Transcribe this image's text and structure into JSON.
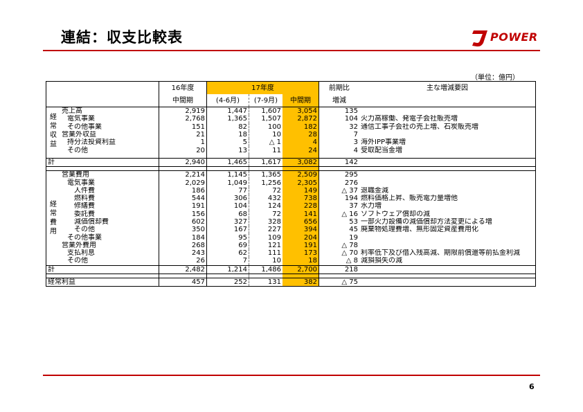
{
  "title": "連結：収支比較表",
  "logo": {
    "text": "POWER"
  },
  "unit": "（単位：億円）",
  "page_number": "6",
  "header": {
    "fy16": "16年度",
    "fy16_sub": "中間期",
    "fy17": "17年度",
    "q1": "(4-6月)",
    "q2": "(7-9月)",
    "fy17_sub": "中間期",
    "yoy": "前期比",
    "yoy_sub": "増減",
    "reasons": "主な増減要因"
  },
  "group_revenue": "経常収益",
  "group_expense": "経常費用",
  "revenue_rows": [
    {
      "label": "売上高",
      "indent": 0,
      "v16": "2,919",
      "q1": "1,447",
      "q2": "1,607",
      "h17": "3,054",
      "diff": "135",
      "reason": ""
    },
    {
      "label": "電気事業",
      "indent": 1,
      "v16": "2,768",
      "q1": "1,365",
      "q2": "1,507",
      "h17": "2,872",
      "diff": "104",
      "reason": "火力高稼働、発電子会社販売増"
    },
    {
      "label": "その他事業",
      "indent": 1,
      "v16": "151",
      "q1": "82",
      "q2": "100",
      "h17": "182",
      "diff": "32",
      "reason": "通信工事子会社の売上増、石炭販売増"
    },
    {
      "label": "営業外収益",
      "indent": 0,
      "v16": "21",
      "q1": "18",
      "q2": "10",
      "h17": "28",
      "diff": "7",
      "reason": ""
    },
    {
      "label": "持分法投資利益",
      "indent": 1,
      "v16": "1",
      "q1": "5",
      "q2": "△ 1",
      "h17": "4",
      "diff": "3",
      "reason": "海外IPP事業増"
    },
    {
      "label": "その他",
      "indent": 1,
      "v16": "20",
      "q1": "13",
      "q2": "11",
      "h17": "24",
      "diff": "4",
      "reason": "受取配当金増"
    }
  ],
  "revenue_total": {
    "label": "計",
    "v16": "2,940",
    "q1": "1,465",
    "q2": "1,617",
    "h17": "3,082",
    "diff": "142",
    "reason": ""
  },
  "expense_rows": [
    {
      "label": "営業費用",
      "indent": 0,
      "v16": "2,214",
      "q1": "1,145",
      "q2": "1,365",
      "h17": "2,509",
      "diff": "295",
      "reason": ""
    },
    {
      "label": "電気事業",
      "indent": 1,
      "v16": "2,029",
      "q1": "1,049",
      "q2": "1,256",
      "h17": "2,305",
      "diff": "276",
      "reason": ""
    },
    {
      "label": "人件費",
      "indent": 2,
      "v16": "186",
      "q1": "77",
      "q2": "72",
      "h17": "149",
      "diff": "△ 37",
      "reason": "退職金減"
    },
    {
      "label": "燃料費",
      "indent": 2,
      "v16": "544",
      "q1": "306",
      "q2": "432",
      "h17": "738",
      "diff": "194",
      "reason": "燃料価格上昇、販売電力量増他"
    },
    {
      "label": "修繕費",
      "indent": 2,
      "v16": "191",
      "q1": "104",
      "q2": "124",
      "h17": "228",
      "diff": "37",
      "reason": "水力増"
    },
    {
      "label": "委託費",
      "indent": 2,
      "v16": "156",
      "q1": "68",
      "q2": "72",
      "h17": "141",
      "diff": "△ 16",
      "reason": "ソフトウェア償却の減"
    },
    {
      "label": "減価償却費",
      "indent": 2,
      "v16": "602",
      "q1": "327",
      "q2": "328",
      "h17": "656",
      "diff": "53",
      "reason": "一部火力設備の減価償却方法変更による増"
    },
    {
      "label": "その他",
      "indent": 2,
      "v16": "350",
      "q1": "167",
      "q2": "227",
      "h17": "394",
      "diff": "45",
      "reason": "廃棄物処理費増、無形固定資産費用化"
    },
    {
      "label": "その他事業",
      "indent": 1,
      "v16": "184",
      "q1": "95",
      "q2": "109",
      "h17": "204",
      "diff": "19",
      "reason": ""
    },
    {
      "label": "営業外費用",
      "indent": 0,
      "v16": "268",
      "q1": "69",
      "q2": "121",
      "h17": "191",
      "diff": "△ 78",
      "reason": ""
    },
    {
      "label": "支払利息",
      "indent": 1,
      "v16": "243",
      "q1": "62",
      "q2": "111",
      "h17": "173",
      "diff": "△ 70",
      "reason": "利率低下及び借入残高減、期限前償還等前払金利減"
    },
    {
      "label": "その他",
      "indent": 1,
      "v16": "26",
      "q1": "7",
      "q2": "10",
      "h17": "18",
      "diff": "△ 8",
      "reason": "減損損失の減"
    }
  ],
  "expense_total": {
    "label": "計",
    "v16": "2,482",
    "q1": "1,214",
    "q2": "1,486",
    "h17": "2,700",
    "diff": "218",
    "reason": ""
  },
  "ordinary_income": {
    "label": "経常利益",
    "v16": "457",
    "q1": "252",
    "q2": "131",
    "h17": "382",
    "diff": "△ 75",
    "reason": ""
  },
  "colors": {
    "accent": "#c00000",
    "highlight": "#ffc000"
  }
}
